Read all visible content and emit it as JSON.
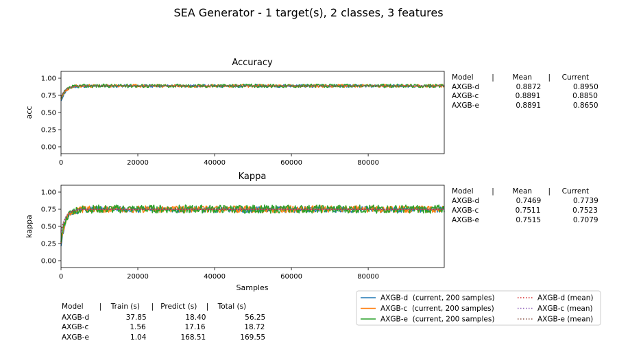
{
  "figure": {
    "title": "SEA Generator - 1 target(s), 2 classes, 3 features"
  },
  "colors": {
    "AXGB-d": "#1f77b4",
    "AXGB-c": "#ff7f0e",
    "AXGB-e": "#2ca02c",
    "AXGB-d-mean": "#d62728",
    "AXGB-c-mean": "#9467bd",
    "AXGB-e-mean": "#8c564b"
  },
  "chart_data": [
    {
      "type": "line",
      "title": "Accuracy",
      "xlabel": "",
      "ylabel": "acc",
      "xlim": [
        0,
        99800
      ],
      "ylim": [
        -0.1,
        1.1
      ],
      "xticks": [
        "0",
        "20000",
        "40000",
        "60000",
        "80000"
      ],
      "yticks": [
        "0.00",
        "0.25",
        "0.50",
        "0.75",
        "1.00"
      ],
      "grid": false,
      "window": 200,
      "series": [
        {
          "name": "AXGB-d (current, 200 samples)",
          "start": 0.66,
          "plateau": 0.8872,
          "noise": 0.02,
          "seed": 11
        },
        {
          "name": "AXGB-c (current, 200 samples)",
          "start": 0.68,
          "plateau": 0.8891,
          "noise": 0.022,
          "seed": 23
        },
        {
          "name": "AXGB-e (current, 200 samples)",
          "start": 0.7,
          "plateau": 0.8891,
          "noise": 0.026,
          "seed": 37
        },
        {
          "name": "AXGB-d (mean)",
          "start": 0.72,
          "plateau": 0.8872,
          "noise": 0,
          "seed": 1
        },
        {
          "name": "AXGB-c (mean)",
          "start": 0.73,
          "plateau": 0.8891,
          "noise": 0,
          "seed": 2
        },
        {
          "name": "AXGB-e (mean)",
          "start": 0.74,
          "plateau": 0.8891,
          "noise": 0,
          "seed": 3
        }
      ],
      "table": {
        "header": "Model        |        Mean       |     Current",
        "rows": [
          "AXGB-d                0.8872              0.8950",
          "AXGB-c                0.8891              0.8850",
          "AXGB-e                0.8891              0.8650"
        ]
      }
    },
    {
      "type": "line",
      "title": "Kappa",
      "xlabel": "Samples",
      "ylabel": "kappa",
      "xlim": [
        0,
        99800
      ],
      "ylim": [
        -0.1,
        1.1
      ],
      "xticks": [
        "0",
        "20000",
        "40000",
        "60000",
        "80000"
      ],
      "yticks": [
        "0.00",
        "0.25",
        "0.50",
        "0.75",
        "1.00"
      ],
      "grid": false,
      "window": 200,
      "series": [
        {
          "name": "AXGB-d (current, 200 samples)",
          "start": 0.22,
          "plateau": 0.7469,
          "noise": 0.045,
          "seed": 51
        },
        {
          "name": "AXGB-c (current, 200 samples)",
          "start": 0.26,
          "plateau": 0.7511,
          "noise": 0.05,
          "seed": 63
        },
        {
          "name": "AXGB-e (current, 200 samples)",
          "start": 0.3,
          "plateau": 0.7515,
          "noise": 0.06,
          "seed": 77
        },
        {
          "name": "AXGB-d (mean)",
          "start": 0.4,
          "plateau": 0.7469,
          "noise": 0,
          "seed": 4
        },
        {
          "name": "AXGB-c (mean)",
          "start": 0.42,
          "plateau": 0.7511,
          "noise": 0,
          "seed": 5
        },
        {
          "name": "AXGB-e (mean)",
          "start": 0.44,
          "plateau": 0.7515,
          "noise": 0,
          "seed": 6
        }
      ],
      "table": {
        "header": "Model        |        Mean       |     Current",
        "rows": [
          "AXGB-d                0.7469              0.7739",
          "AXGB-c                0.7511              0.7523",
          "AXGB-e                0.7515              0.7079"
        ]
      }
    }
  ],
  "timing_table": {
    "header": "Model       |    Train (s)     |   Predict (s)    |    Total (s)",
    "rows": [
      "AXGB-d                37.85                 18.40                 56.25",
      "AXGB-c                  1.56                 17.16                 18.72",
      "AXGB-e                  1.04               168.51               169.55"
    ]
  },
  "legend": {
    "items": [
      {
        "label": "AXGB-d  (current, 200 samples)",
        "color": "#1f77b4",
        "style": "solid"
      },
      {
        "label": "AXGB-c  (current, 200 samples)",
        "color": "#ff7f0e",
        "style": "solid"
      },
      {
        "label": "AXGB-e  (current, 200 samples)",
        "color": "#2ca02c",
        "style": "solid"
      },
      {
        "label": "AXGB-d (mean)",
        "color": "#d62728",
        "style": "dotted"
      },
      {
        "label": "AXGB-c (mean)",
        "color": "#9467bd",
        "style": "dotted"
      },
      {
        "label": "AXGB-e (mean)",
        "color": "#8c564b",
        "style": "dotted"
      }
    ]
  }
}
